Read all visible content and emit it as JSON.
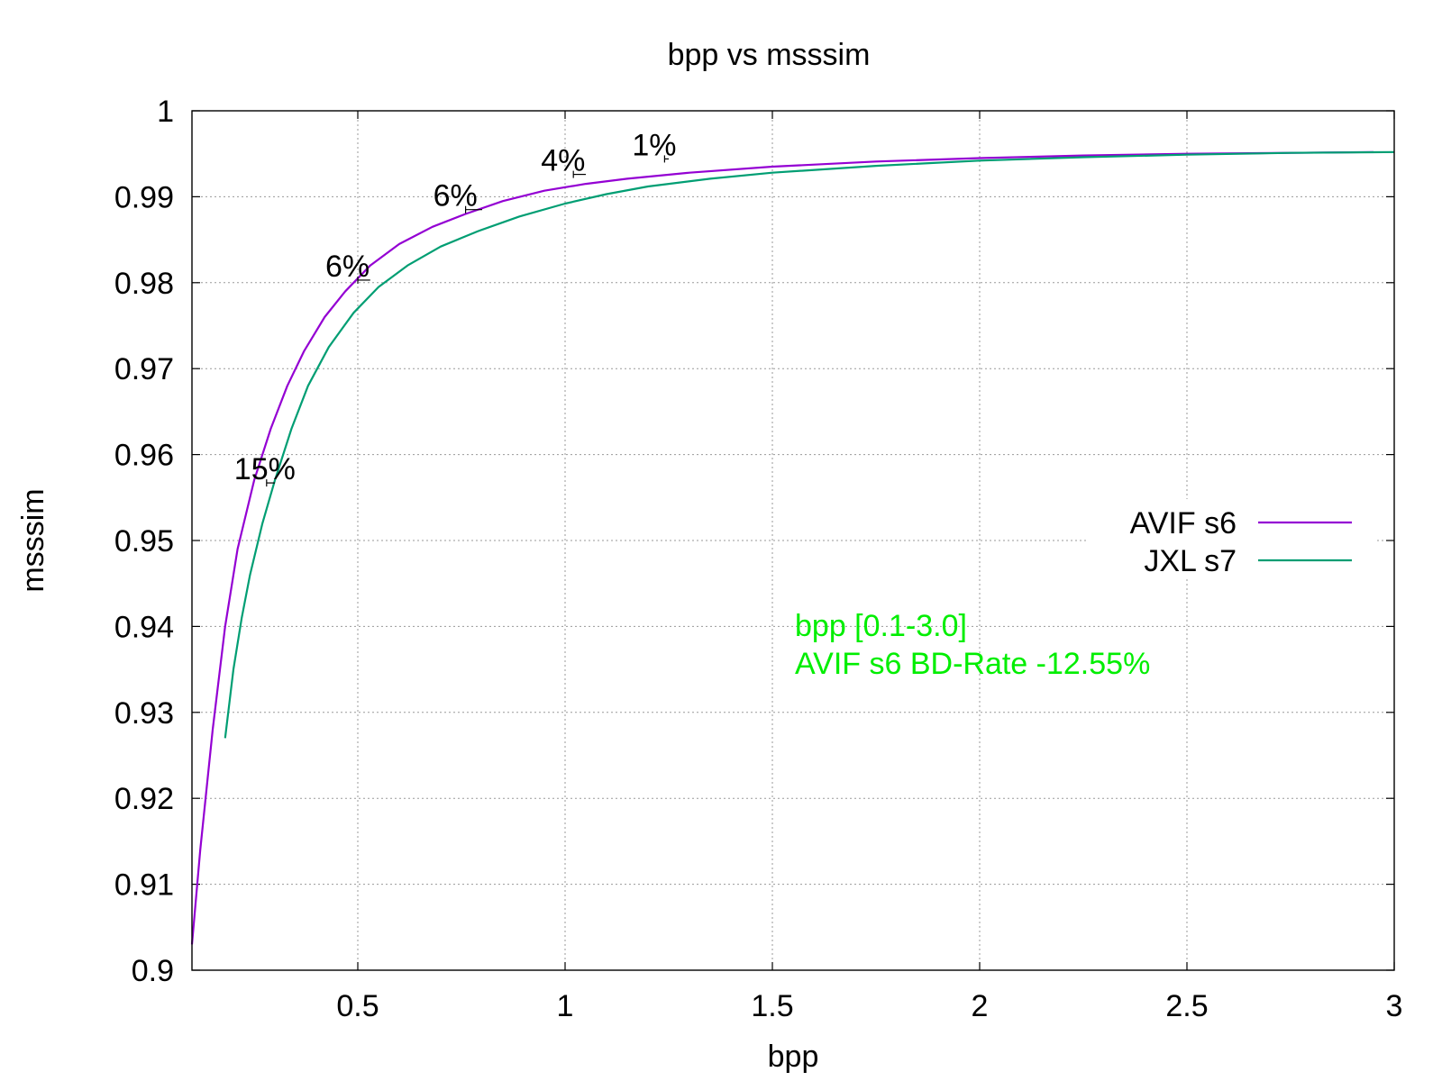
{
  "chart_data": {
    "type": "line",
    "title": "bpp vs msssim",
    "xlabel": "bpp",
    "ylabel": "msssim",
    "xlim": [
      0.1,
      3.0
    ],
    "ylim": [
      0.9,
      1.0
    ],
    "x_ticks": [
      {
        "value": 0.5,
        "label": "0.5"
      },
      {
        "value": 1.0,
        "label": "1"
      },
      {
        "value": 1.5,
        "label": "1.5"
      },
      {
        "value": 2.0,
        "label": "2"
      },
      {
        "value": 2.5,
        "label": "2.5"
      },
      {
        "value": 3.0,
        "label": "3"
      }
    ],
    "y_ticks": [
      {
        "value": 0.9,
        "label": "0.9"
      },
      {
        "value": 0.91,
        "label": "0.91"
      },
      {
        "value": 0.92,
        "label": "0.92"
      },
      {
        "value": 0.93,
        "label": "0.93"
      },
      {
        "value": 0.94,
        "label": "0.94"
      },
      {
        "value": 0.95,
        "label": "0.95"
      },
      {
        "value": 0.96,
        "label": "0.96"
      },
      {
        "value": 0.97,
        "label": "0.97"
      },
      {
        "value": 0.98,
        "label": "0.98"
      },
      {
        "value": 0.99,
        "label": "0.99"
      },
      {
        "value": 1.0,
        "label": "1"
      }
    ],
    "grid": true,
    "legend_position": "right",
    "series": [
      {
        "name": "AVIF s6",
        "color": "#9400d3",
        "points": [
          [
            0.1,
            0.903
          ],
          [
            0.12,
            0.914
          ],
          [
            0.15,
            0.928
          ],
          [
            0.18,
            0.94
          ],
          [
            0.21,
            0.949
          ],
          [
            0.25,
            0.957
          ],
          [
            0.29,
            0.963
          ],
          [
            0.33,
            0.968
          ],
          [
            0.37,
            0.972
          ],
          [
            0.42,
            0.976
          ],
          [
            0.47,
            0.979
          ],
          [
            0.53,
            0.982
          ],
          [
            0.6,
            0.9845
          ],
          [
            0.68,
            0.9865
          ],
          [
            0.76,
            0.988
          ],
          [
            0.85,
            0.9895
          ],
          [
            0.95,
            0.9907
          ],
          [
            1.05,
            0.9915
          ],
          [
            1.15,
            0.9921
          ],
          [
            1.3,
            0.9928
          ],
          [
            1.5,
            0.9935
          ],
          [
            1.75,
            0.9941
          ],
          [
            2.0,
            0.9945
          ],
          [
            2.25,
            0.9948
          ],
          [
            2.5,
            0.995
          ],
          [
            2.75,
            0.9951
          ],
          [
            2.95,
            0.9952
          ]
        ]
      },
      {
        "name": "JXL s7",
        "color": "#009e73",
        "points": [
          [
            0.18,
            0.927
          ],
          [
            0.2,
            0.935
          ],
          [
            0.22,
            0.941
          ],
          [
            0.24,
            0.946
          ],
          [
            0.27,
            0.952
          ],
          [
            0.3,
            0.957
          ],
          [
            0.34,
            0.963
          ],
          [
            0.38,
            0.968
          ],
          [
            0.43,
            0.9725
          ],
          [
            0.49,
            0.9765
          ],
          [
            0.55,
            0.9795
          ],
          [
            0.62,
            0.982
          ],
          [
            0.7,
            0.9842
          ],
          [
            0.79,
            0.986
          ],
          [
            0.89,
            0.9877
          ],
          [
            1.0,
            0.9892
          ],
          [
            1.1,
            0.9903
          ],
          [
            1.2,
            0.9912
          ],
          [
            1.35,
            0.9921
          ],
          [
            1.5,
            0.9928
          ],
          [
            1.75,
            0.9936
          ],
          [
            2.0,
            0.9942
          ],
          [
            2.25,
            0.9946
          ],
          [
            2.5,
            0.9949
          ],
          [
            2.75,
            0.9951
          ],
          [
            3.0,
            0.9952
          ]
        ]
      }
    ],
    "annotations": [
      {
        "label": "15%",
        "x": 0.28,
        "y": 0.9567,
        "x2": 0.3
      },
      {
        "label": "6%",
        "x": 0.5,
        "y": 0.9803,
        "x2": 0.53
      },
      {
        "label": "6%",
        "x": 0.76,
        "y": 0.9885,
        "x2": 0.8
      },
      {
        "label": "4%",
        "x": 1.02,
        "y": 0.9926,
        "x2": 1.05
      },
      {
        "label": "1%",
        "x": 1.24,
        "y": 0.9944,
        "x2": 1.25
      }
    ],
    "info_text": [
      "bpp [0.1-3.0]",
      "AVIF s6 BD-Rate -12.55%"
    ],
    "info_color": "#00ee00"
  }
}
